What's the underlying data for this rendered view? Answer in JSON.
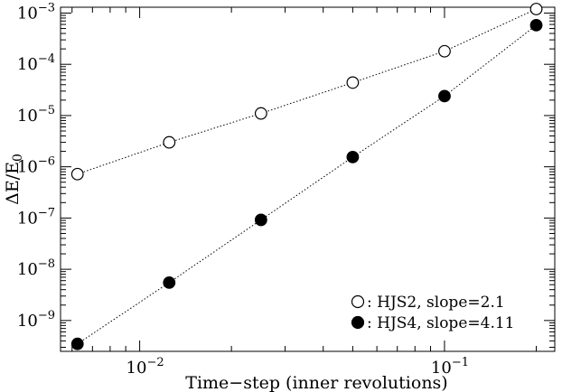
{
  "chart_data": {
    "type": "scatter",
    "title": "",
    "xlabel": "Time−step (inner revolutions)",
    "ylabel": "ΔE/E",
    "ylabel_subscript": "0",
    "xscale": "log",
    "yscale": "log",
    "xlim": [
      0.0055,
      0.23
    ],
    "ylim": [
      2.5e-10,
      0.0013
    ],
    "grid": false,
    "legend_position": "bottom-right",
    "x_major_ticks": [
      {
        "value": 0.01,
        "base": "10",
        "exp": "−2"
      },
      {
        "value": 0.1,
        "base": "10",
        "exp": "−1"
      }
    ],
    "y_major_ticks": [
      {
        "value": 0.001,
        "base": "10",
        "exp": "−3"
      },
      {
        "value": 0.0001,
        "base": "10",
        "exp": "−4"
      },
      {
        "value": 1e-05,
        "base": "10",
        "exp": "−5"
      },
      {
        "value": 1e-06,
        "base": "10",
        "exp": "−6"
      },
      {
        "value": 1e-07,
        "base": "10",
        "exp": "−7"
      },
      {
        "value": 1e-08,
        "base": "10",
        "exp": "−8"
      },
      {
        "value": 1e-09,
        "base": "10",
        "exp": "−9"
      }
    ],
    "series": [
      {
        "name": ": HJS2, slope=2.1",
        "marker": "open-circle",
        "color": "#000000",
        "x": [
          0.00625,
          0.0125,
          0.025,
          0.05,
          0.1,
          0.2
        ],
        "y": [
          7.2e-07,
          3e-06,
          1.1e-05,
          4.4e-05,
          0.00018,
          0.0012
        ]
      },
      {
        "name": ": HJS4, slope=4.11",
        "marker": "filled-circle",
        "color": "#000000",
        "x": [
          0.00625,
          0.0125,
          0.025,
          0.05,
          0.1,
          0.2
        ],
        "y": [
          3.5e-10,
          5.5e-09,
          9.2e-08,
          1.55e-06,
          2.4e-05,
          0.00058
        ]
      }
    ]
  }
}
